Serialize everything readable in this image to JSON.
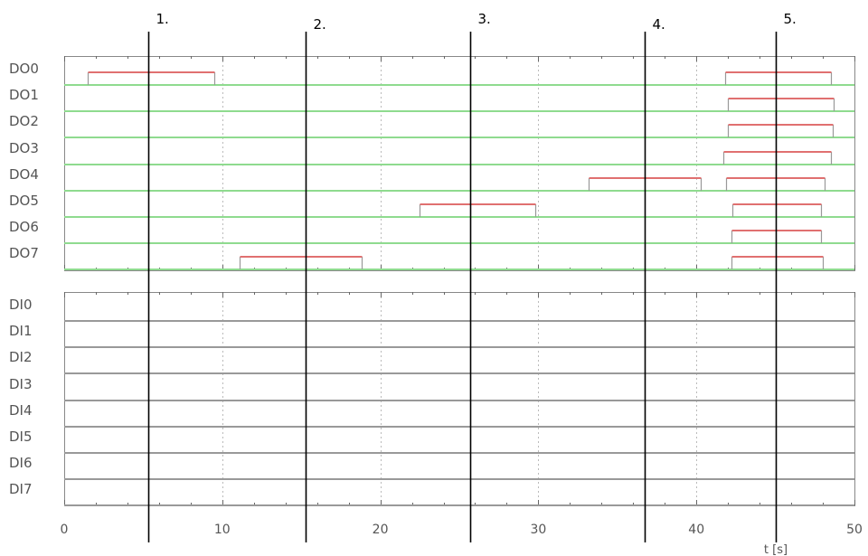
{
  "chart_data": {
    "type": "timing-diagram",
    "xlabel": "t [s]",
    "xlim": [
      0,
      50
    ],
    "xticks": [
      0,
      10,
      20,
      30,
      40,
      50
    ],
    "grid": "vertical dashed at major ticks",
    "colors": {
      "output_baseline": "#8fdb8f",
      "input_baseline": "#999999",
      "pulse_top": "#e07070",
      "pulse_side": "#999999",
      "marker": "#000000"
    },
    "panels": [
      {
        "name": "outputs",
        "rows": [
          {
            "label": "DO0",
            "pulses": [
              [
                1.5,
                9.5
              ],
              [
                41.8,
                48.5
              ]
            ]
          },
          {
            "label": "DO1",
            "pulses": [
              [
                42.0,
                48.7
              ]
            ]
          },
          {
            "label": "DO2",
            "pulses": [
              [
                42.0,
                48.6
              ]
            ]
          },
          {
            "label": "DO3",
            "pulses": [
              [
                41.7,
                48.5
              ]
            ]
          },
          {
            "label": "DO4",
            "pulses": [
              [
                33.2,
                40.3
              ],
              [
                41.9,
                48.1
              ]
            ]
          },
          {
            "label": "DO5",
            "pulses": [
              [
                22.5,
                29.8
              ],
              [
                42.3,
                47.9
              ]
            ]
          },
          {
            "label": "DO6",
            "pulses": [
              [
                42.2,
                47.9
              ]
            ]
          },
          {
            "label": "DO7",
            "pulses": [
              [
                11.1,
                18.8
              ],
              [
                42.2,
                48.0
              ]
            ]
          }
        ]
      },
      {
        "name": "inputs",
        "rows": [
          {
            "label": "DI0",
            "pulses": []
          },
          {
            "label": "DI1",
            "pulses": []
          },
          {
            "label": "DI2",
            "pulses": []
          },
          {
            "label": "DI3",
            "pulses": []
          },
          {
            "label": "DI4",
            "pulses": []
          },
          {
            "label": "DI5",
            "pulses": []
          },
          {
            "label": "DI6",
            "pulses": []
          },
          {
            "label": "DI7",
            "pulses": []
          }
        ]
      }
    ],
    "markers": [
      {
        "label": "1.",
        "x": 5.3
      },
      {
        "label": "2.",
        "x": 15.3
      },
      {
        "label": "3.",
        "x": 25.7
      },
      {
        "label": "4.",
        "x": 36.7
      },
      {
        "label": "5.",
        "x": 45.0
      }
    ]
  }
}
